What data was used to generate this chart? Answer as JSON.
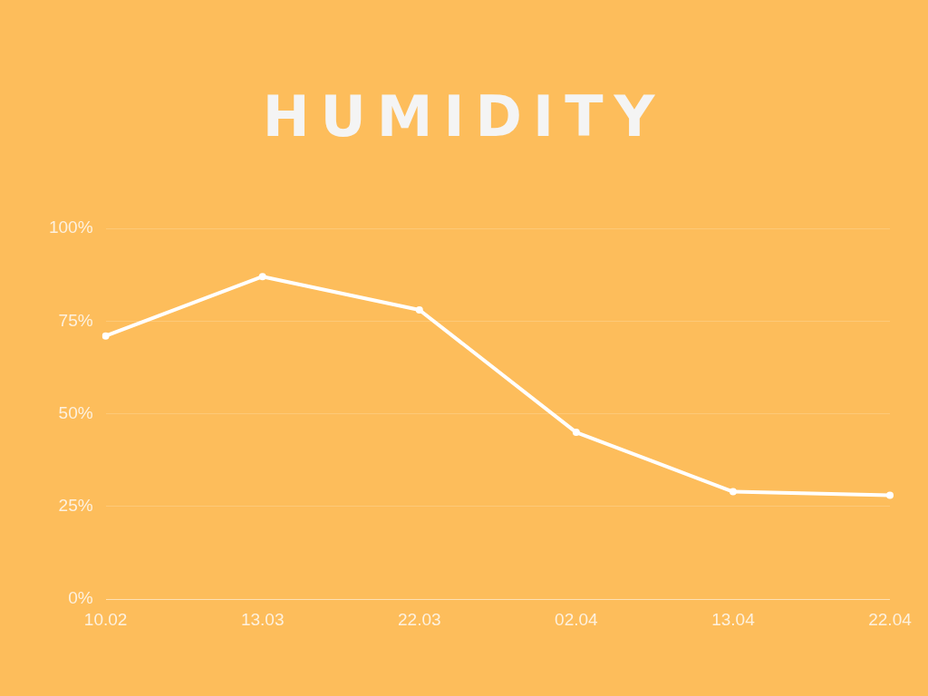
{
  "chart_data": {
    "type": "line",
    "title": "HUMIDITY",
    "categories": [
      "10.02",
      "13.03",
      "22.03",
      "02.04",
      "13.04",
      "22.04"
    ],
    "series": [
      {
        "color": "#ffffff",
        "values": [
          71,
          87,
          78,
          45,
          29,
          28
        ]
      }
    ],
    "ylim": [
      0,
      100
    ],
    "yticks": [
      {
        "value": 0,
        "label": "0%"
      },
      {
        "value": 25,
        "label": "25%"
      },
      {
        "value": 50,
        "label": "50%"
      },
      {
        "value": 75,
        "label": "75%"
      },
      {
        "value": 100,
        "label": "100%"
      }
    ],
    "grid": "y",
    "legend": false,
    "marker": "circle",
    "line_style": "solid"
  }
}
